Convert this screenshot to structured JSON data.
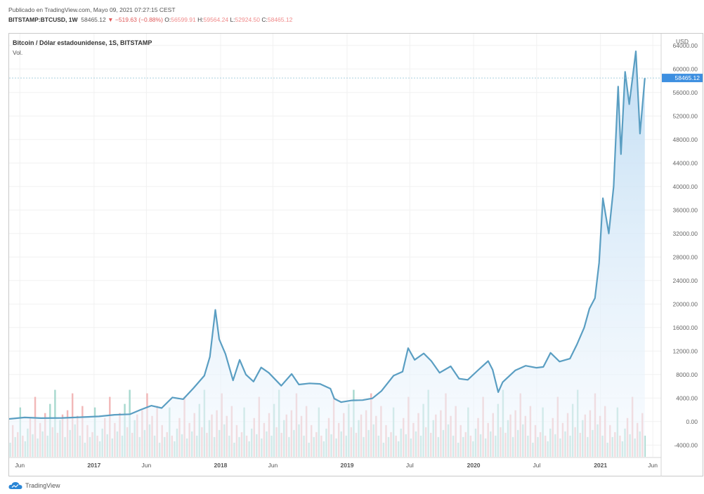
{
  "header": {
    "published": "Publicado en TradingView.com, Mayo 09, 2021 07:27:15 CEST",
    "symbol": "BITSTAMP:BTCUSD, 1W",
    "last": "58465.12",
    "change": "▼ −519.63 (−0.88%)",
    "o_label": "O:",
    "o_value": "56599.91",
    "h_label": "H:",
    "h_value": "59564.24",
    "l_label": "L:",
    "l_value": "52924.50",
    "c_label": "C:",
    "c_value": "58465.12"
  },
  "legend": {
    "title": "Bitcoin / Dólar estadounidense, 1S, BITSTAMP",
    "vol": "Vol."
  },
  "brand": {
    "name": "TradingView",
    "logo_icon": "tradingview-cloud-icon"
  },
  "colors": {
    "line": "#5a9ec2",
    "area_top": "#bfdcf3",
    "area_bottom": "#f4f9fe",
    "vol_up": "#a8d9cf",
    "vol_down": "#f2b8b8",
    "last_price_bg": "#3d8fe0",
    "grid": "#f1f1f1"
  },
  "chart_data": {
    "type": "area",
    "currency_label": "USD",
    "last_price_label": "58465.12",
    "ylim": [
      -6000,
      66000
    ],
    "yticks": [
      64000,
      60000,
      56000,
      52000,
      48000,
      44000,
      40000,
      36000,
      32000,
      28000,
      24000,
      20000,
      16000,
      12000,
      8000,
      4000,
      0,
      -4000
    ],
    "ytick_labels": [
      "64000.00",
      "60000.00",
      "56000.00",
      "52000.00",
      "48000.00",
      "44000.00",
      "40000.00",
      "36000.00",
      "32000.00",
      "28000.00",
      "24000.00",
      "20000.00",
      "16000.00",
      "12000.00",
      "8000.00",
      "4000.00",
      "0.00",
      "-4000.00"
    ],
    "xlim": [
      "2016-05-01",
      "2021-06-25"
    ],
    "xticks": [
      {
        "date": "2016-06-01",
        "label": "Jun"
      },
      {
        "date": "2017-01-01",
        "label": "2017"
      },
      {
        "date": "2017-06-01",
        "label": "Jun"
      },
      {
        "date": "2018-01-01",
        "label": "2018"
      },
      {
        "date": "2018-06-01",
        "label": "Jun"
      },
      {
        "date": "2019-01-01",
        "label": "2019"
      },
      {
        "date": "2019-07-01",
        "label": "Jul"
      },
      {
        "date": "2020-01-01",
        "label": "2020"
      },
      {
        "date": "2020-07-01",
        "label": "Jul"
      },
      {
        "date": "2021-01-01",
        "label": "2021"
      },
      {
        "date": "2021-06-01",
        "label": "Jun"
      }
    ],
    "series": [
      {
        "points": [
          [
            "2016-05-01",
            450
          ],
          [
            "2016-06-15",
            700
          ],
          [
            "2016-08-01",
            580
          ],
          [
            "2016-10-01",
            620
          ],
          [
            "2016-12-01",
            760
          ],
          [
            "2017-01-15",
            880
          ],
          [
            "2017-03-01",
            1150
          ],
          [
            "2017-04-15",
            1250
          ],
          [
            "2017-05-15",
            2000
          ],
          [
            "2017-06-15",
            2700
          ],
          [
            "2017-07-15",
            2300
          ],
          [
            "2017-08-15",
            4100
          ],
          [
            "2017-09-15",
            3800
          ],
          [
            "2017-10-15",
            5700
          ],
          [
            "2017-11-15",
            7800
          ],
          [
            "2017-12-01",
            11000
          ],
          [
            "2017-12-17",
            19000
          ],
          [
            "2017-12-28",
            14000
          ],
          [
            "2018-01-15",
            11500
          ],
          [
            "2018-02-06",
            7000
          ],
          [
            "2018-02-25",
            10500
          ],
          [
            "2018-03-15",
            8000
          ],
          [
            "2018-04-06",
            6800
          ],
          [
            "2018-04-28",
            9200
          ],
          [
            "2018-05-20",
            8300
          ],
          [
            "2018-06-25",
            6100
          ],
          [
            "2018-07-25",
            8100
          ],
          [
            "2018-08-15",
            6300
          ],
          [
            "2018-09-15",
            6500
          ],
          [
            "2018-10-15",
            6400
          ],
          [
            "2018-11-14",
            5600
          ],
          [
            "2018-11-25",
            3900
          ],
          [
            "2018-12-15",
            3300
          ],
          [
            "2019-01-15",
            3600
          ],
          [
            "2019-02-15",
            3650
          ],
          [
            "2019-03-15",
            3950
          ],
          [
            "2019-04-10",
            5200
          ],
          [
            "2019-05-15",
            7800
          ],
          [
            "2019-06-10",
            8500
          ],
          [
            "2019-06-26",
            12500
          ],
          [
            "2019-07-15",
            10500
          ],
          [
            "2019-08-10",
            11600
          ],
          [
            "2019-09-01",
            10300
          ],
          [
            "2019-09-25",
            8300
          ],
          [
            "2019-10-27",
            9400
          ],
          [
            "2019-11-20",
            7300
          ],
          [
            "2019-12-15",
            7100
          ],
          [
            "2020-01-15",
            8800
          ],
          [
            "2020-02-12",
            10300
          ],
          [
            "2020-02-25",
            8800
          ],
          [
            "2020-03-12",
            5000
          ],
          [
            "2020-03-25",
            6700
          ],
          [
            "2020-04-30",
            8700
          ],
          [
            "2020-05-30",
            9500
          ],
          [
            "2020-06-30",
            9150
          ],
          [
            "2020-07-20",
            9300
          ],
          [
            "2020-08-10",
            11700
          ],
          [
            "2020-09-05",
            10200
          ],
          [
            "2020-10-05",
            10700
          ],
          [
            "2020-10-25",
            13100
          ],
          [
            "2020-11-15",
            16000
          ],
          [
            "2020-11-30",
            19200
          ],
          [
            "2020-12-16",
            21000
          ],
          [
            "2020-12-28",
            27000
          ],
          [
            "2021-01-08",
            38000
          ],
          [
            "2021-01-25",
            32000
          ],
          [
            "2021-02-08",
            40000
          ],
          [
            "2021-02-21",
            57000
          ],
          [
            "2021-03-01",
            45500
          ],
          [
            "2021-03-13",
            59500
          ],
          [
            "2021-03-25",
            54000
          ],
          [
            "2021-04-13",
            63000
          ],
          [
            "2021-04-25",
            49000
          ],
          [
            "2021-05-09",
            58465
          ]
        ]
      }
    ],
    "volume": {
      "scale_max": 12000,
      "pattern": [
        [
          0.2,
          "up"
        ],
        [
          0.45,
          "down"
        ],
        [
          0.28,
          "up"
        ],
        [
          0.35,
          "down"
        ],
        [
          0.7,
          "up"
        ],
        [
          0.3,
          "down"
        ],
        [
          0.22,
          "up"
        ],
        [
          0.4,
          "up"
        ],
        [
          0.55,
          "down"
        ],
        [
          0.32,
          "up"
        ],
        [
          0.85,
          "down"
        ],
        [
          0.26,
          "up"
        ],
        [
          0.48,
          "down"
        ],
        [
          0.36,
          "up"
        ],
        [
          0.62,
          "down"
        ],
        [
          0.3,
          "up"
        ],
        [
          0.75,
          "up"
        ],
        [
          0.42,
          "down"
        ],
        [
          0.95,
          "up"
        ],
        [
          0.34,
          "down"
        ],
        [
          0.52,
          "up"
        ],
        [
          0.6,
          "down"
        ],
        [
          0.28,
          "up"
        ],
        [
          0.66,
          "down"
        ],
        [
          0.38,
          "up"
        ],
        [
          0.9,
          "down"
        ],
        [
          0.46,
          "up"
        ],
        [
          0.58,
          "down"
        ],
        [
          0.3,
          "up"
        ],
        [
          0.72,
          "down"
        ]
      ]
    }
  }
}
